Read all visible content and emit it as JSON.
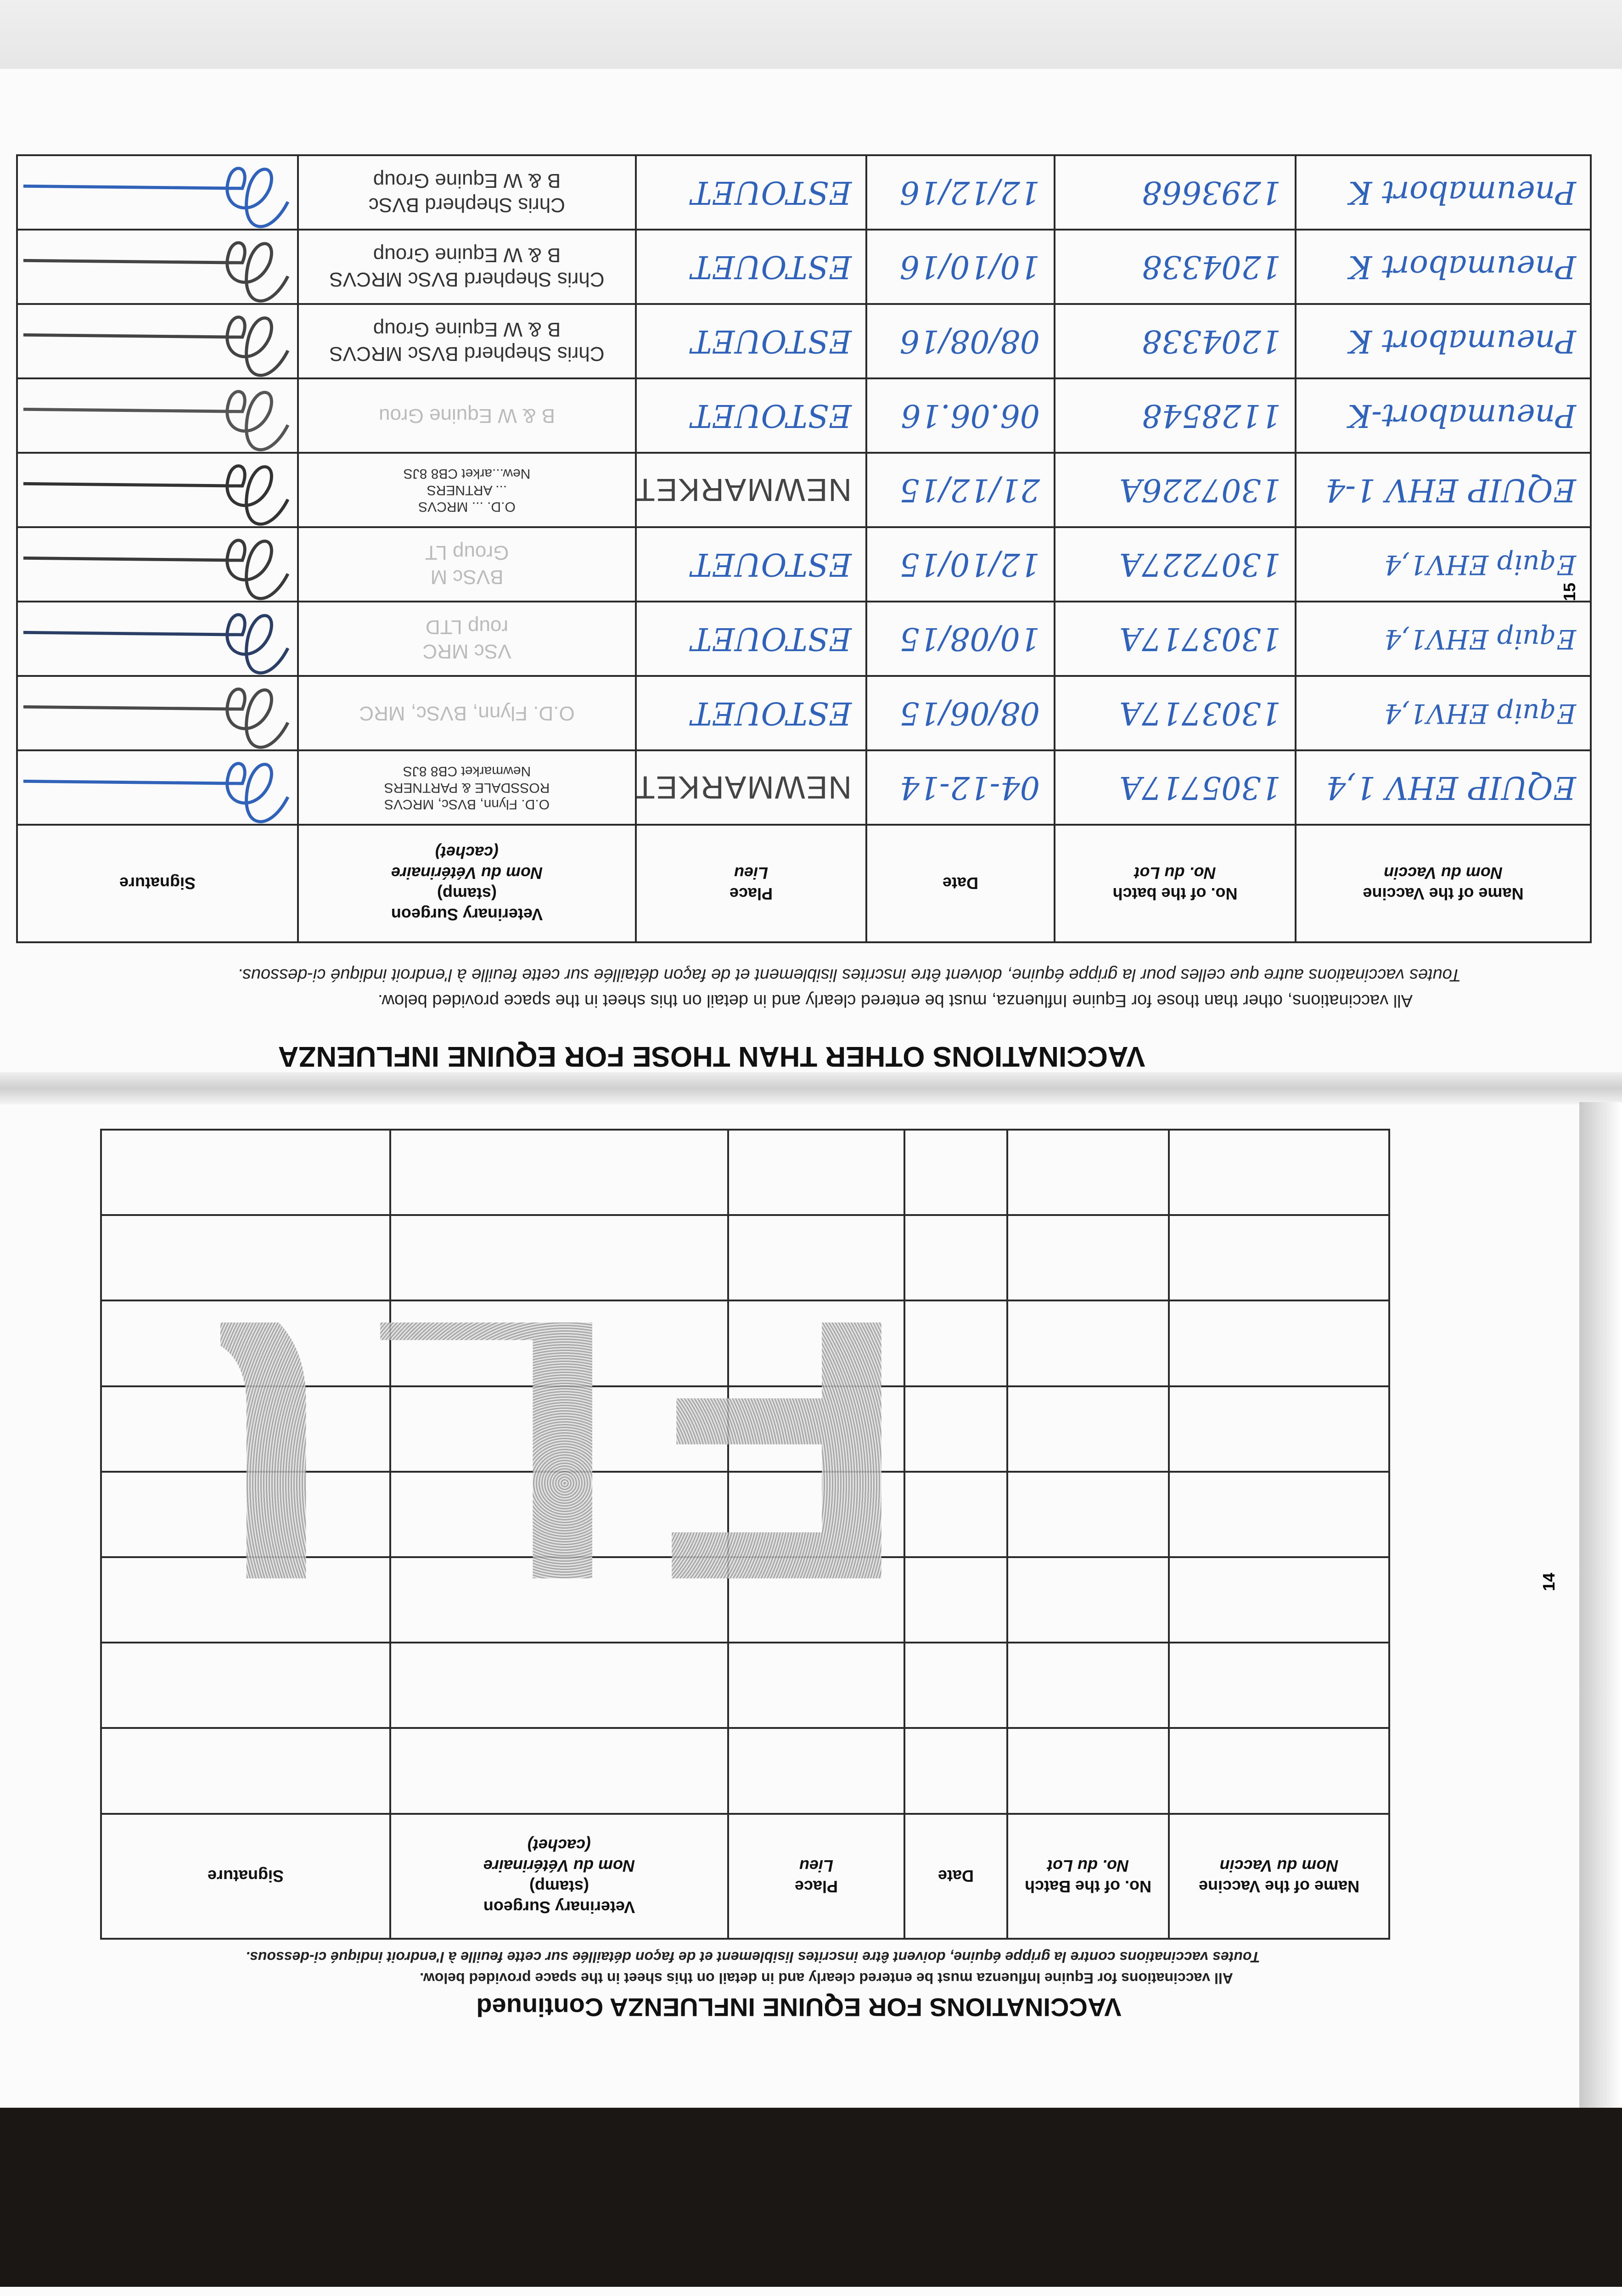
{
  "page15": {
    "title": "VACCINATIONS OTHER THAN THOSE FOR EQUINE INFLUENZA",
    "instruction_en": "All vaccinations, other than those for Equine Influenza, must be entered clearly and in detail on this sheet in the space provided below.",
    "instruction_fr": "Toutes vaccinations autre que celles pour la grippe équine, doivent être inscrites lisiblement et de façon détaillée sur cette feuille à l'endroit indiqué ci-dessous.",
    "page_number": "15",
    "headers": {
      "name_en": "Name of the Vaccine",
      "name_fr": "Nom du Vaccin",
      "batch_en": "No. of the batch",
      "batch_fr": "No. du Lot",
      "date": "Date",
      "place_en": "Place",
      "place_fr": "Lieu",
      "vet_en": "Veterinary Surgeon",
      "vet_stamp": "(stamp)",
      "vet_fr": "Nom du Vétérinaire",
      "vet_cachet": "(cachet)",
      "signature": "Signature"
    },
    "rows": [
      {
        "vaccine": "EQUIP EHV 1,4",
        "batch": "1305717A",
        "date": "04-12-14",
        "place": "NEWMARKET",
        "place_stamped": true,
        "vet": [
          "O.D. Flynn, BVSc, MRCVS",
          "ROSSDALE & PARTNERS",
          "Newmarket CB8 8JS"
        ],
        "vet_style": "small",
        "sig_color": "#2f62b8"
      },
      {
        "vaccine": "Equip EHV1,4",
        "batch": "1303717A",
        "date": "08/06/15",
        "place": "ESTOUET",
        "place_stamped": false,
        "vet": [
          "O.D. Flynn, BVSc, MRC"
        ],
        "vet_style": "faint",
        "sig_color": "#4a4a4a"
      },
      {
        "vaccine": "Equip EHV1,4",
        "batch": "1303717A",
        "date": "10/08/15",
        "place": "ESTOUET",
        "place_stamped": false,
        "vet": [
          "VSc MRC",
          "roup LTD"
        ],
        "vet_style": "faint",
        "sig_color": "#2b3f66"
      },
      {
        "vaccine": "Equip EHV1,4",
        "batch": "1307227A",
        "date": "12/10/15",
        "place": "ESTOUET",
        "place_stamped": false,
        "vet": [
          "BVSc M",
          "Group LT"
        ],
        "vet_style": "faint",
        "sig_color": "#3a3a3a"
      },
      {
        "vaccine": "EQUIP EHV 1-4",
        "batch": "1307226A",
        "date": "21/12/15",
        "place": "NEWMARKET",
        "place_stamped": true,
        "vet": [
          "O.D. ... MRCVS",
          "... ARTNERS",
          "New...arket CB8 8JS"
        ],
        "vet_style": "small",
        "sig_color": "#333333"
      },
      {
        "vaccine": "Pneumabort-K",
        "batch": "1128548",
        "date": "06.06.16",
        "place": "ESTOUET",
        "place_stamped": false,
        "vet": [
          "B & W Equine Grou"
        ],
        "vet_style": "faint",
        "sig_color": "#555555"
      },
      {
        "vaccine": "Pneumabort K",
        "batch": "1204338",
        "date": "08/08/16",
        "place": "ESTOUET",
        "place_stamped": false,
        "vet": [
          "Chris Shepherd BVSc MRCVS",
          "B & W Equine Group"
        ],
        "vet_style": "normal",
        "sig_color": "#444444"
      },
      {
        "vaccine": "Pneumabort K",
        "batch": "1204338",
        "date": "10/10/16",
        "place": "ESTOUET",
        "place_stamped": false,
        "vet": [
          "Chris Shepherd BVSc MRCVS",
          "B & W Equine Group"
        ],
        "vet_style": "normal",
        "sig_color": "#444444"
      },
      {
        "vaccine": "Pneumabort K",
        "batch": "1293668",
        "date": "12/12/16",
        "place": "ESTOUET",
        "place_stamped": false,
        "vet": [
          "Chris Shepherd BVSc",
          "B & W Equine Group"
        ],
        "vet_style": "normal",
        "sig_color": "#2f62b8"
      }
    ]
  },
  "page14": {
    "title": "VACCINATIONS FOR EQUINE INFLUENZA Continued",
    "instruction_en": "All vaccinations for Equine Influenza must be entered clearly and in detail on this sheet in the space provided below.",
    "instruction_fr": "Toutes vaccinations contre la grippe équine, doivent être inscrites lisiblement et de façon détaillée sur cette feuille à l'endroit indiqué ci-dessous.",
    "page_number": "14",
    "headers": {
      "name_en": "Name of the Vaccine",
      "name_fr": "Nom du Vaccin",
      "batch_en": "No. of the Batch",
      "batch_fr": "No. du Lot",
      "date": "Date",
      "place_en": "Place",
      "place_fr": "Lieu",
      "vet_en": "Veterinary Surgeon",
      "vet_stamp": "(stamp)",
      "vet_fr": "Nom du Vétérinaire",
      "vet_cachet": "(cachet)",
      "signature": "Signature"
    },
    "empty_rows": 8,
    "stamp": "FLU"
  },
  "colors": {
    "ink_blue": "#2f62b8",
    "stamp_gray": "#9a9a9a"
  }
}
